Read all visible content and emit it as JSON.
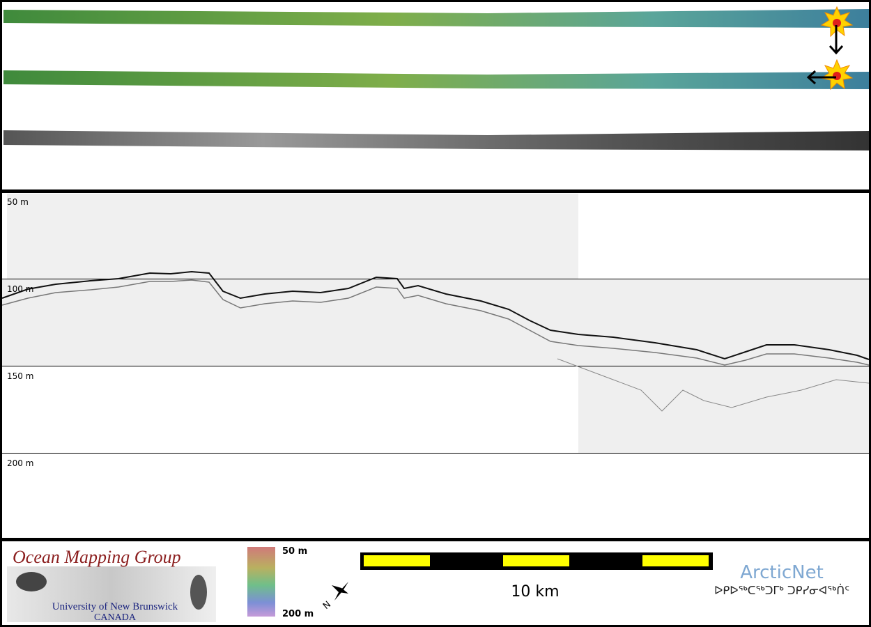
{
  "profile": {
    "depth_labels": [
      "50 m",
      "100 m",
      "150 m",
      "200 m"
    ]
  },
  "footer": {
    "logo": {
      "title": "Ocean Mapping Group",
      "university": "University of New Brunswick",
      "country": "CANADA"
    },
    "colorbar": {
      "top_label": "50 m",
      "bottom_label": "200 m"
    },
    "north_label": "N",
    "scale_bar": {
      "label": "10 km"
    },
    "partner": {
      "name": "ArcticNet",
      "syllabics": "ᐅᑭᐅᖅᑕᖅᑐᒥᒃ ᑐᑭᓯᓂᐊᖅᑏᑦ"
    }
  }
}
